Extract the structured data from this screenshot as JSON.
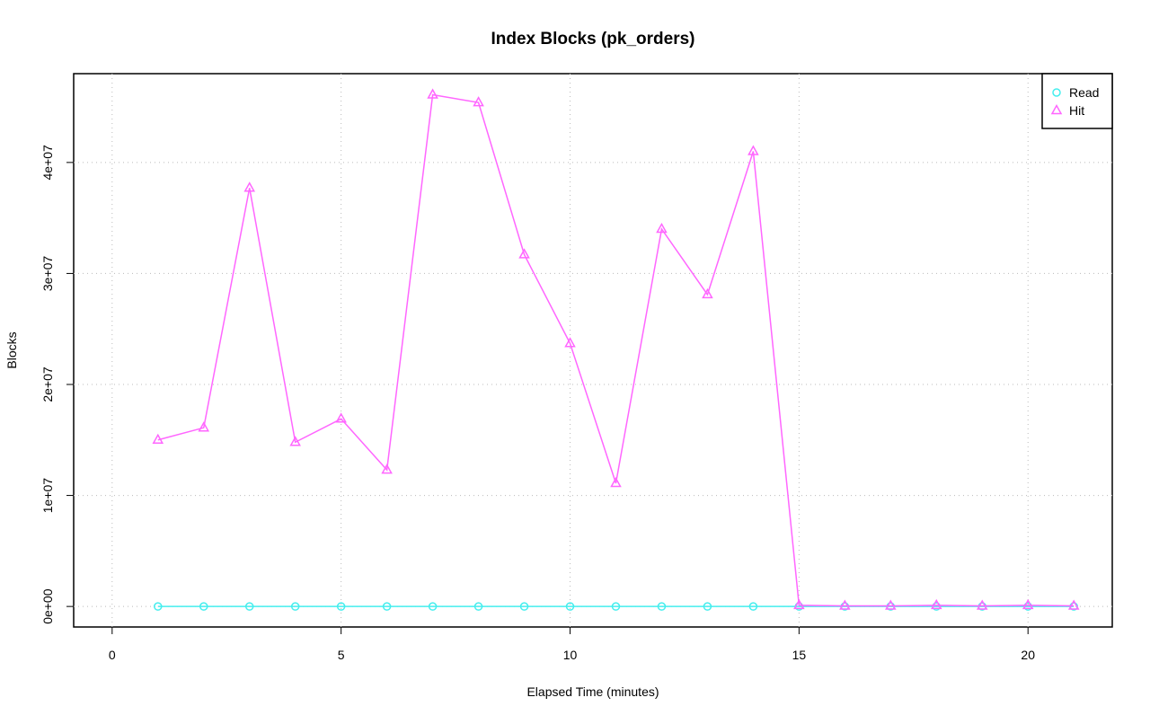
{
  "chart_data": {
    "type": "line",
    "title": "Index Blocks (pk_orders)",
    "xlabel": "Elapsed Time (minutes)",
    "ylabel": "Blocks",
    "x": [
      1,
      2,
      3,
      4,
      5,
      6,
      7,
      8,
      9,
      10,
      11,
      12,
      13,
      14,
      15,
      16,
      17,
      18,
      19,
      20,
      21
    ],
    "series": [
      {
        "name": "Read",
        "color": "#44eeee",
        "marker": "circle",
        "values": [
          0,
          0,
          0,
          0,
          0,
          0,
          0,
          0,
          0,
          0,
          0,
          0,
          0,
          0,
          0,
          0,
          0,
          0,
          0,
          0,
          0
        ]
      },
      {
        "name": "Hit",
        "color": "#ff66ff",
        "marker": "triangle",
        "values": [
          15000000,
          16100000,
          37700000,
          14800000,
          16900000,
          12300000,
          46100000,
          45400000,
          31700000,
          23700000,
          11100000,
          34000000,
          28100000,
          41000000,
          100000,
          50000,
          50000,
          100000,
          50000,
          100000,
          50000
        ]
      }
    ],
    "xlim": [
      -0.84,
      21.84
    ],
    "xticks": [
      0,
      5,
      10,
      15,
      20
    ],
    "ylim": [
      -1850000,
      48000000
    ],
    "yticks": [
      {
        "value": 0,
        "label": "0e+00"
      },
      {
        "value": 10000000,
        "label": "1e+07"
      },
      {
        "value": 20000000,
        "label": "2e+07"
      },
      {
        "value": 30000000,
        "label": "3e+07"
      },
      {
        "value": 40000000,
        "label": "4e+07"
      }
    ],
    "grid": true,
    "legend": "top-right"
  }
}
